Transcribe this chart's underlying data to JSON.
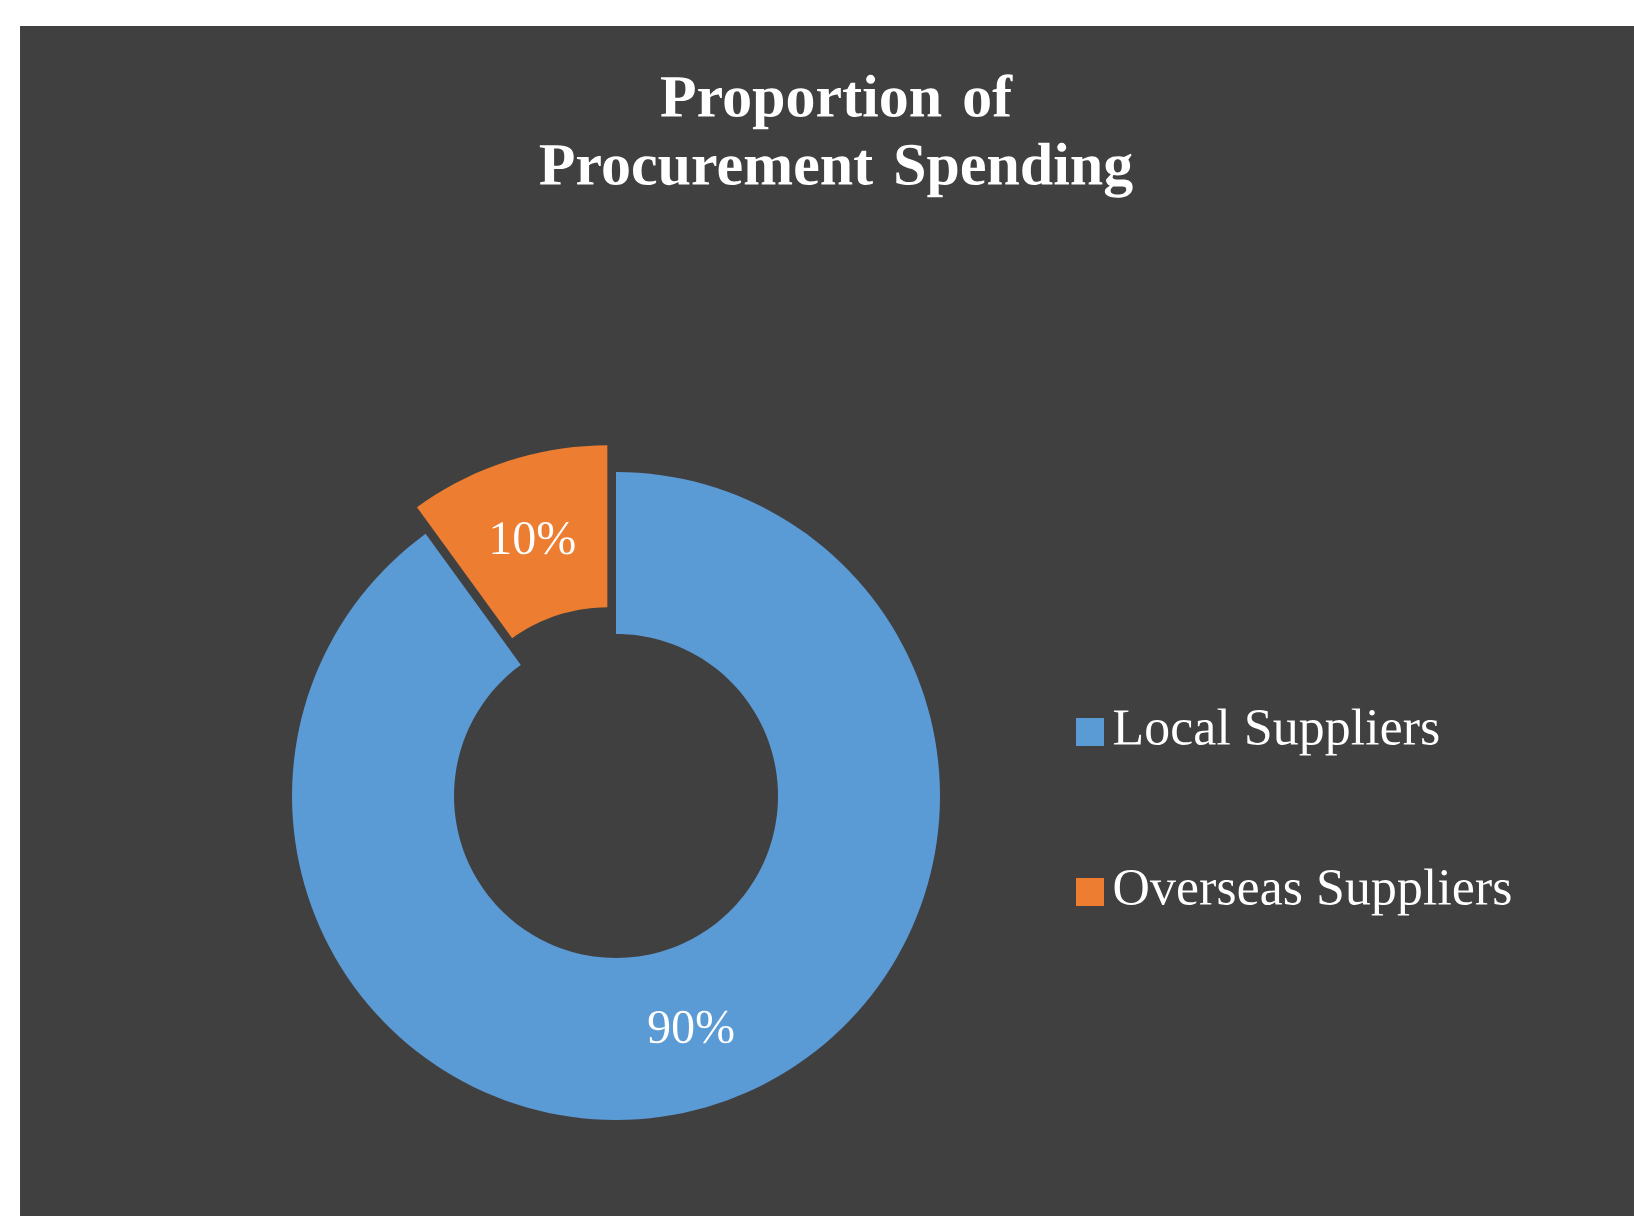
{
  "chart_data": {
    "type": "donut",
    "title": "Proportion of Procurement Spending",
    "categories": [
      "Local Suppliers",
      "Overseas Suppliers"
    ],
    "values": [
      90,
      10
    ],
    "colors": [
      "#5b9bd5",
      "#ed7d31"
    ],
    "value_labels": [
      "90%",
      "10%"
    ],
    "legend": "right"
  }
}
